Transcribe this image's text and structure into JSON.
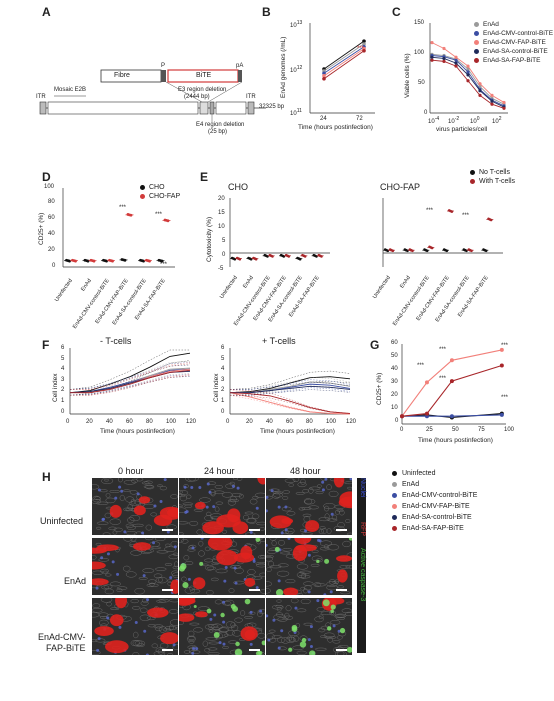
{
  "panels": {
    "A": {
      "label": "A",
      "fibre": "Fibre",
      "p": "P",
      "bite": "BiTE",
      "pa": "pA",
      "e3": "E3 region deletion",
      "e3bp": "(2444 bp)",
      "itr_left": "ITR",
      "mosaic": "Mosaic E2B",
      "itr_right": "ITR",
      "length": "32325 bp",
      "e4": "E4 region deletion",
      "e4bp": "(25 bp)"
    },
    "B": {
      "label": "B",
      "ylabel": "EnAd genomes (/mL)",
      "xlabel": "Time (hours postinfection)",
      "yticks": [
        "10",
        "10",
        "10"
      ],
      "ytick_exp": [
        "13",
        "12",
        "11"
      ],
      "xticks": [
        "24",
        "72"
      ],
      "sig": "***"
    },
    "C": {
      "label": "C",
      "ylabel": "Viable cells (%)",
      "xlabel": "virus particles/cell",
      "yticks": [
        "150",
        "100",
        "50",
        "0"
      ],
      "xticks": [
        "10",
        "10",
        "10",
        "10"
      ],
      "xtick_exp": [
        "-4",
        "-2",
        "0",
        "2"
      ]
    },
    "D": {
      "label": "D",
      "ylabel": "CD25+ (%)",
      "yticks": [
        "100",
        "80",
        "60",
        "40",
        "20",
        "0"
      ],
      "legend": [
        "CHO",
        "CHO-FAP"
      ],
      "sig1": "***",
      "sig2": "***",
      "categories": [
        "Uninfected",
        "EnAd",
        "EnAd-CMV-control-BiTE",
        "EnAd-CMV-FAP-BiTE",
        "EnAd-SA-control-BiTE",
        "EnAd-SA-FAP-BiTE"
      ]
    },
    "E": {
      "label": "E",
      "title_left": "CHO",
      "title_right": "CHO-FAP",
      "ylabel": "Cytotoxicity (%)",
      "yticks": [
        "20",
        "15",
        "10",
        "5",
        "0",
        "-5"
      ],
      "legend": [
        "No T-cells",
        "With T-cells"
      ],
      "sig": [
        "***",
        "***"
      ],
      "categories": [
        "Uninfected",
        "EnAd",
        "EnAd-CMV-control-BiTE",
        "EnAd-CMV-FAP-BiTE",
        "EnAd-SA-control-BiTE",
        "EnAd-SA-FAP-BiTE"
      ]
    },
    "F": {
      "label": "F",
      "title_left": "- T-cells",
      "title_right": "+ T-cells",
      "ylabel": "Cell index",
      "xlabel": "Time (hours postinfection)",
      "yticks": [
        "6",
        "5",
        "4",
        "3",
        "2",
        "1",
        "0"
      ],
      "xticks": [
        "0",
        "20",
        "40",
        "60",
        "80",
        "100",
        "120"
      ]
    },
    "G": {
      "label": "G",
      "ylabel": "CD25+ (%)",
      "xlabel": "Time (hours postinfection)",
      "yticks": [
        "60",
        "50",
        "40",
        "30",
        "20",
        "10",
        "0"
      ],
      "xticks": [
        "0",
        "25",
        "50",
        "75",
        "100"
      ],
      "sig": [
        "***",
        "***",
        "***",
        "***",
        "***"
      ]
    },
    "H": {
      "label": "H",
      "cols": [
        "0 hour",
        "24 hour",
        "48 hour"
      ],
      "rows": [
        "Uninfected",
        "EnAd",
        "EnAd-CMV-\nFAP-BiTE"
      ],
      "side_red": "RFP",
      "side_green": "Active caspase-3",
      "side_blue": "Nuclei"
    }
  },
  "main_legend": [
    {
      "label": "Uninfected",
      "color": "#111111"
    },
    {
      "label": "EnAd",
      "color": "#9a9a9a"
    },
    {
      "label": "EnAd-CMV-control-BiTE",
      "color": "#3b4ea3"
    },
    {
      "label": "EnAd-CMV-FAP-BiTE",
      "color": "#f2807a"
    },
    {
      "label": "EnAd-SA-control-BiTE",
      "color": "#1f2a5a"
    },
    {
      "label": "EnAd-SA-FAP-BiTE",
      "color": "#a8262a"
    }
  ],
  "chart_data": [
    {
      "type": "line",
      "panel": "B",
      "x": [
        24,
        72
      ],
      "ylabel": "EnAd genomes (/mL)",
      "xlabel": "Time (hours postinfection)",
      "ylim_log10": [
        11,
        13
      ],
      "series": [
        {
          "name": "Uninfected",
          "values": [
            1000000000000.0,
            4300000000000.0
          ]
        },
        {
          "name": "EnAd",
          "values": [
            900000000000.0,
            3700000000000.0
          ]
        },
        {
          "name": "EnAd-CMV-control-BiTE",
          "values": [
            800000000000.0,
            3200000000000.0
          ]
        },
        {
          "name": "EnAd-CMV-FAP-BiTE",
          "values": [
            700000000000.0,
            2900000000000.0
          ]
        },
        {
          "name": "EnAd-SA-FAP-BiTE",
          "values": [
            600000000000.0,
            2600000000000.0
          ]
        }
      ]
    },
    {
      "type": "line",
      "panel": "C",
      "xlabel": "virus particles/cell",
      "ylabel": "Viable cells (%)",
      "x_log10": [
        -4,
        -3,
        -2,
        -1,
        0,
        1,
        2
      ],
      "ylim": [
        0,
        150
      ],
      "series": [
        {
          "name": "EnAd",
          "values": [
            100,
            98,
            92,
            75,
            45,
            25,
            15
          ]
        },
        {
          "name": "EnAd-CMV-control-BiTE",
          "values": [
            98,
            96,
            90,
            70,
            40,
            22,
            12
          ]
        },
        {
          "name": "EnAd-SA-control-BiTE",
          "values": [
            95,
            93,
            85,
            65,
            38,
            20,
            10
          ]
        },
        {
          "name": "EnAd-CMV-FAP-BiTE",
          "values": [
            120,
            110,
            95,
            80,
            50,
            30,
            18
          ]
        },
        {
          "name": "EnAd-SA-FAP-BiTE",
          "values": [
            90,
            88,
            80,
            55,
            30,
            15,
            8
          ]
        }
      ]
    },
    {
      "type": "scatter",
      "panel": "D",
      "categories": [
        "Uninfected",
        "EnAd",
        "EnAd-CMV-control-BiTE",
        "EnAd-CMV-FAP-BiTE",
        "EnAd-SA-control-BiTE",
        "EnAd-SA-FAP-BiTE"
      ],
      "ylim": [
        0,
        100
      ],
      "ylabel": "CD25+ (%)",
      "series": [
        {
          "name": "CHO",
          "values": [
            8,
            8,
            8,
            9,
            8,
            8
          ]
        },
        {
          "name": "CHO-FAP",
          "values": [
            8,
            8,
            8,
            66,
            8,
            59
          ]
        }
      ]
    },
    {
      "type": "scatter",
      "panel": "E-CHO",
      "categories": [
        "Uninfected",
        "EnAd",
        "EnAd-CMV-control-BiTE",
        "EnAd-CMV-FAP-BiTE",
        "EnAd-SA-control-BiTE",
        "EnAd-SA-FAP-BiTE"
      ],
      "ylim": [
        -5,
        20
      ],
      "ylabel": "Cytotoxicity (%)",
      "series": [
        {
          "name": "No T-cells",
          "values": [
            -2,
            -2,
            -1,
            -1,
            -2,
            -1
          ]
        },
        {
          "name": "With T-cells",
          "values": [
            -2,
            -2,
            -1,
            -1,
            -1,
            -1
          ]
        }
      ]
    },
    {
      "type": "scatter",
      "panel": "E-CHO-FAP",
      "categories": [
        "Uninfected",
        "EnAd",
        "EnAd-CMV-control-BiTE",
        "EnAd-CMV-FAP-BiTE",
        "EnAd-SA-control-BiTE",
        "EnAd-SA-FAP-BiTE"
      ],
      "ylim": [
        -5,
        20
      ],
      "series": [
        {
          "name": "No T-cells",
          "values": [
            1,
            1,
            1,
            1,
            1,
            1
          ]
        },
        {
          "name": "With T-cells",
          "values": [
            1,
            1,
            2,
            15,
            1,
            12
          ]
        }
      ]
    },
    {
      "type": "line",
      "panel": "F-minus",
      "x": [
        0,
        20,
        40,
        60,
        80,
        100,
        120
      ],
      "ylim": [
        0,
        6
      ],
      "ylabel": "Cell index",
      "series": [
        {
          "name": "Uninfected",
          "values": [
            2,
            2.2,
            2.8,
            3.5,
            4.4,
            5.4,
            5.7
          ]
        },
        {
          "name": "EnAd",
          "values": [
            2,
            2.1,
            2.5,
            3.0,
            3.6,
            4.2,
            4.3
          ]
        },
        {
          "name": "EnAd-CMV-control-BiTE",
          "values": [
            2,
            2.1,
            2.5,
            3.0,
            3.5,
            4.1,
            4.2
          ]
        },
        {
          "name": "EnAd-CMV-FAP-BiTE",
          "values": [
            2,
            2.0,
            2.4,
            2.9,
            3.5,
            4.0,
            4.2
          ]
        },
        {
          "name": "EnAd-SA-control-BiTE",
          "values": [
            2,
            2.1,
            2.4,
            2.9,
            3.4,
            3.9,
            4.0
          ]
        },
        {
          "name": "EnAd-SA-FAP-BiTE",
          "values": [
            2,
            2.0,
            2.3,
            2.8,
            3.4,
            3.9,
            4.1
          ]
        }
      ]
    },
    {
      "type": "line",
      "panel": "F-plus",
      "x": [
        0,
        20,
        40,
        60,
        80,
        100,
        120
      ],
      "ylim": [
        0,
        6
      ],
      "ylabel": "Cell index",
      "series": [
        {
          "name": "Uninfected",
          "values": [
            2,
            2.1,
            2.4,
            2.9,
            3.4,
            3.5,
            3.3
          ]
        },
        {
          "name": "EnAd",
          "values": [
            2,
            2.0,
            2.3,
            2.6,
            3.0,
            2.9,
            2.6
          ]
        },
        {
          "name": "EnAd-CMV-control-BiTE",
          "values": [
            2,
            2.0,
            2.2,
            2.5,
            2.8,
            2.7,
            2.4
          ]
        },
        {
          "name": "EnAd-CMV-FAP-BiTE",
          "values": [
            2,
            1.6,
            1.1,
            0.6,
            0.2,
            0.05,
            0
          ]
        },
        {
          "name": "EnAd-SA-control-BiTE",
          "values": [
            2,
            2.0,
            2.2,
            2.4,
            2.6,
            2.5,
            2.3
          ]
        },
        {
          "name": "EnAd-SA-FAP-BiTE",
          "values": [
            2,
            1.9,
            1.7,
            1.2,
            0.6,
            0.2,
            0.05
          ]
        }
      ]
    },
    {
      "type": "line",
      "panel": "G",
      "x": [
        0,
        24,
        48,
        96
      ],
      "xlim": [
        0,
        100
      ],
      "ylim": [
        0,
        60
      ],
      "ylabel": "CD25+ (%)",
      "xlabel": "Time (hours postinfection)",
      "series": [
        {
          "name": "Uninfected",
          "values": [
            6,
            7,
            5,
            8
          ]
        },
        {
          "name": "EnAd-CMV-control-BiTE",
          "values": [
            6,
            6,
            6,
            7
          ]
        },
        {
          "name": "EnAd-CMV-FAP-BiTE",
          "values": [
            6,
            32,
            49,
            57
          ]
        },
        {
          "name": "EnAd-SA-FAP-BiTE",
          "values": [
            6,
            8,
            33,
            45
          ]
        }
      ]
    }
  ]
}
